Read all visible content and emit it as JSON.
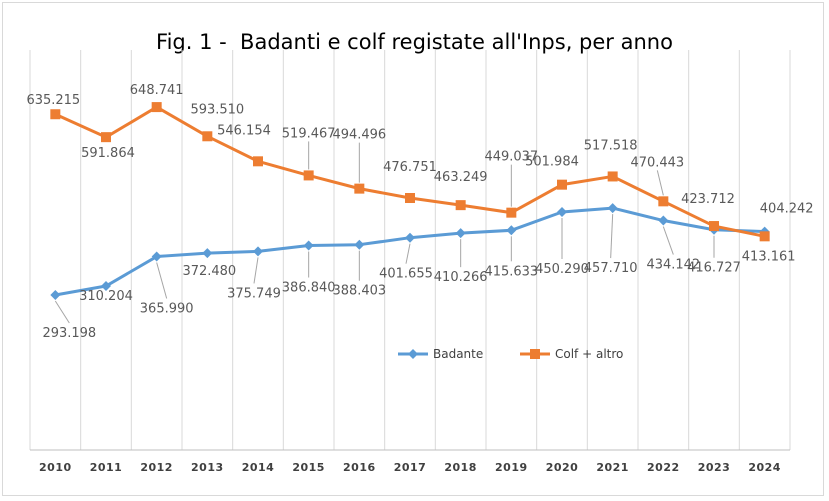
{
  "chart_data": {
    "type": "line",
    "title": "Fig. 1 -  Badanti e colf registate all'Inps, per anno",
    "categories": [
      "2010",
      "2011",
      "2012",
      "2013",
      "2014",
      "2015",
      "2016",
      "2017",
      "2018",
      "2019",
      "2020",
      "2021",
      "2022",
      "2023",
      "2024"
    ],
    "series": [
      {
        "name": "Badante",
        "color": "#5b9bd5",
        "marker": "diamond",
        "values": [
          293198,
          310204,
          365990,
          372480,
          375749,
          386840,
          388403,
          401655,
          410266,
          415633,
          450290,
          457710,
          434142,
          416727,
          413161
        ],
        "labels": [
          "293.198",
          "310.204",
          "365.990",
          "372.480",
          "375.749",
          "386.840",
          "388.403",
          "401.655",
          "410.266",
          "415.633",
          "450.290",
          "457.710",
          "434.142",
          "416.727",
          "413.161"
        ]
      },
      {
        "name": "Colf + altro",
        "color": "#ed7d31",
        "marker": "square",
        "values": [
          635215,
          591864,
          648741,
          593510,
          546154,
          519467,
          494496,
          476751,
          463249,
          449037,
          501984,
          517518,
          470443,
          423712,
          404242
        ],
        "labels": [
          "635.215",
          "591.864",
          "648.741",
          "593.510",
          "546.154",
          "519.467",
          "494.496",
          "476.751",
          "463.249",
          "449.037",
          "501.984",
          "517.518",
          "470.443",
          "423.712",
          "404.242"
        ]
      }
    ],
    "ylim": [
      0,
      700000
    ],
    "grid": "vertical",
    "legend": "center-right"
  }
}
